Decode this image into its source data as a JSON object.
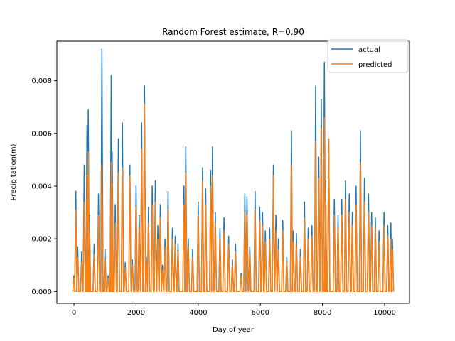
{
  "chart_data": {
    "type": "line",
    "title": "Random Forest estimate, R=0.90",
    "xlabel": "Day of year",
    "ylabel": "Precipitation(m)",
    "xlim": [
      -550,
      10800
    ],
    "ylim": [
      -0.00045,
      0.0095
    ],
    "xticks": [
      0,
      2000,
      4000,
      6000,
      8000,
      10000
    ],
    "xtick_labels": [
      "0",
      "2000",
      "4000",
      "6000",
      "8000",
      "10000"
    ],
    "yticks": [
      0.0,
      0.002,
      0.004,
      0.006,
      0.008
    ],
    "ytick_labels": [
      "0.000",
      "0.002",
      "0.004",
      "0.006",
      "0.008"
    ],
    "grid": false,
    "legend_placement": "top-right",
    "series": [
      {
        "name": "actual",
        "color": "#1f77b4",
        "x": [
          0,
          60,
          120,
          250,
          330,
          420,
          460,
          500,
          650,
          790,
          900,
          1000,
          1100,
          1200,
          1230,
          1330,
          1430,
          1560,
          1650,
          1800,
          1880,
          2000,
          2100,
          2180,
          2270,
          2330,
          2400,
          2520,
          2620,
          2700,
          2780,
          2850,
          2930,
          3030,
          3170,
          3260,
          3350,
          3540,
          3600,
          3680,
          3820,
          4000,
          4140,
          4240,
          4400,
          4460,
          4550,
          4700,
          4830,
          4980,
          5100,
          5200,
          5380,
          5500,
          5570,
          5660,
          5830,
          5980,
          6070,
          6160,
          6300,
          6420,
          6500,
          6580,
          6720,
          6850,
          7000,
          7060,
          7160,
          7290,
          7420,
          7540,
          7660,
          7780,
          7880,
          7960,
          8060,
          8100,
          8200,
          8380,
          8500,
          8620,
          8740,
          8860,
          8960,
          9080,
          9220,
          9350,
          9480,
          9580,
          9700,
          9820,
          9980,
          10100,
          10200,
          10250
        ],
        "y": [
          0.0006,
          0.0038,
          0.0017,
          0.0015,
          0.0048,
          0.0063,
          0.0069,
          0.0029,
          0.0018,
          0.0037,
          0.0092,
          0.0016,
          0.0006,
          0.0082,
          0.0053,
          0.0033,
          0.0058,
          0.0064,
          0.0011,
          0.0048,
          0.0012,
          0.004,
          0.0029,
          0.0064,
          0.0078,
          0.0013,
          0.0032,
          0.004,
          0.0042,
          0.0025,
          0.0033,
          0.001,
          0.002,
          0.0038,
          0.0024,
          0.0021,
          0.0018,
          0.004,
          0.0055,
          0.002,
          0.0016,
          0.0034,
          0.0047,
          0.0039,
          0.0046,
          0.0055,
          0.003,
          0.0024,
          0.0028,
          0.0021,
          0.0012,
          0.0018,
          0.0007,
          0.0037,
          0.0036,
          0.0017,
          0.0038,
          0.0032,
          0.003,
          0.0023,
          0.0024,
          0.0048,
          0.0029,
          0.002,
          0.0027,
          0.0013,
          0.0061,
          0.0023,
          0.0022,
          0.0016,
          0.0034,
          0.0024,
          0.0025,
          0.0078,
          0.0051,
          0.0073,
          0.0087,
          0.0042,
          0.0058,
          0.0035,
          0.0029,
          0.0035,
          0.0042,
          0.0037,
          0.003,
          0.004,
          0.0061,
          0.0043,
          0.0037,
          0.003,
          0.0028,
          0.0023,
          0.003,
          0.0025,
          0.0026,
          0.002
        ]
      },
      {
        "name": "predicted",
        "color": "#ff7f0e",
        "x": [
          0,
          60,
          120,
          250,
          330,
          420,
          460,
          500,
          650,
          790,
          900,
          1000,
          1100,
          1200,
          1230,
          1330,
          1430,
          1560,
          1650,
          1800,
          1880,
          2000,
          2100,
          2180,
          2270,
          2330,
          2400,
          2520,
          2620,
          2700,
          2780,
          2850,
          2930,
          3030,
          3170,
          3260,
          3350,
          3540,
          3600,
          3680,
          3820,
          4000,
          4140,
          4240,
          4400,
          4460,
          4550,
          4700,
          4830,
          4980,
          5100,
          5200,
          5380,
          5500,
          5570,
          5660,
          5830,
          5980,
          6070,
          6160,
          6300,
          6420,
          6500,
          6580,
          6720,
          6850,
          7000,
          7060,
          7160,
          7290,
          7420,
          7540,
          7660,
          7780,
          7880,
          7960,
          8060,
          8100,
          8200,
          8380,
          8500,
          8620,
          8740,
          8860,
          8960,
          9080,
          9220,
          9350,
          9480,
          9580,
          9700,
          9820,
          9980,
          10100,
          10200,
          10250
        ],
        "y": [
          0.0005,
          0.0031,
          0.0013,
          0.0011,
          0.0034,
          0.0044,
          0.0053,
          0.0022,
          0.0014,
          0.0029,
          0.0048,
          0.0012,
          0.0005,
          0.0049,
          0.0041,
          0.0026,
          0.0045,
          0.0047,
          0.0009,
          0.0044,
          0.001,
          0.0032,
          0.0024,
          0.0054,
          0.0071,
          0.0011,
          0.0026,
          0.0033,
          0.0034,
          0.002,
          0.0028,
          0.0008,
          0.0017,
          0.0031,
          0.002,
          0.0018,
          0.0015,
          0.0033,
          0.0045,
          0.0017,
          0.0013,
          0.0029,
          0.0042,
          0.0033,
          0.004,
          0.0044,
          0.0026,
          0.002,
          0.0023,
          0.0018,
          0.001,
          0.0015,
          0.0006,
          0.003,
          0.0029,
          0.0014,
          0.0031,
          0.0027,
          0.0025,
          0.0019,
          0.002,
          0.0044,
          0.0023,
          0.0016,
          0.0023,
          0.0011,
          0.0048,
          0.0019,
          0.0018,
          0.0013,
          0.0028,
          0.002,
          0.0021,
          0.0057,
          0.0043,
          0.0062,
          0.0066,
          0.0034,
          0.0058,
          0.0029,
          0.0024,
          0.0029,
          0.0035,
          0.003,
          0.0025,
          0.0033,
          0.0049,
          0.0034,
          0.003,
          0.0025,
          0.0024,
          0.0019,
          0.0025,
          0.0021,
          0.002,
          0.0016
        ]
      }
    ]
  }
}
